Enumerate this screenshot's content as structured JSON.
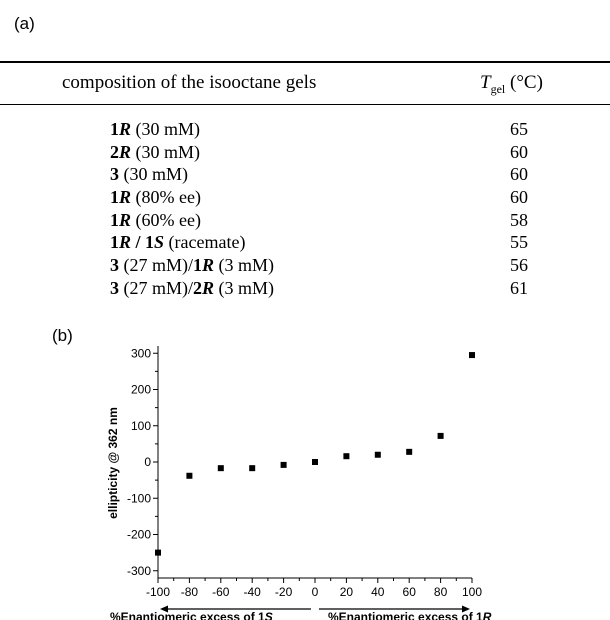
{
  "panel_a": {
    "label": "(a)",
    "header": {
      "composition": "composition of the isooctane gels",
      "tgel_symbol": "T",
      "tgel_sub": "gel",
      "tgel_unit": " (°C)"
    },
    "rows": [
      {
        "parts": [
          {
            "t": "1",
            "b": true
          },
          {
            "t": "R",
            "b": true,
            "i": true
          },
          {
            "t": " (30 mM)"
          }
        ],
        "tgel": "65"
      },
      {
        "parts": [
          {
            "t": "2",
            "b": true
          },
          {
            "t": "R",
            "b": true,
            "i": true
          },
          {
            "t": " (30 mM)"
          }
        ],
        "tgel": "60"
      },
      {
        "parts": [
          {
            "t": "3",
            "b": true
          },
          {
            "t": " (30 mM)"
          }
        ],
        "tgel": "60"
      },
      {
        "parts": [
          {
            "t": "1",
            "b": true
          },
          {
            "t": "R",
            "b": true,
            "i": true
          },
          {
            "t": " (80% ee)"
          }
        ],
        "tgel": "60"
      },
      {
        "parts": [
          {
            "t": "1",
            "b": true
          },
          {
            "t": "R",
            "b": true,
            "i": true
          },
          {
            "t": " (60% ee)"
          }
        ],
        "tgel": "58"
      },
      {
        "parts": [
          {
            "t": "1",
            "b": true
          },
          {
            "t": "R",
            "b": true,
            "i": true
          },
          {
            "t": " / ",
            "b": true
          },
          {
            "t": "1",
            "b": true
          },
          {
            "t": "S",
            "b": true,
            "i": true
          },
          {
            "t": " (racemate)"
          }
        ],
        "tgel": "55"
      },
      {
        "parts": [
          {
            "t": "3",
            "b": true
          },
          {
            "t": " (27 mM)/"
          },
          {
            "t": "1",
            "b": true
          },
          {
            "t": "R",
            "b": true,
            "i": true
          },
          {
            "t": " (3 mM)"
          }
        ],
        "tgel": "56"
      },
      {
        "parts": [
          {
            "t": "3",
            "b": true
          },
          {
            "t": " (27 mM)/"
          },
          {
            "t": "2",
            "b": true
          },
          {
            "t": "R",
            "b": true,
            "i": true
          },
          {
            "t": " (3 mM)"
          }
        ],
        "tgel": "61"
      }
    ]
  },
  "panel_b": {
    "label": "(b)"
  },
  "chart_data": {
    "type": "scatter",
    "ylabel": "ellipticity @ 362 nm",
    "xlabel_left": "%Enantiomeric excess of 1S",
    "xlabel_right": "%Enantiomeric excess of 1R",
    "xlim": [
      -100,
      100
    ],
    "ylim": [
      -320,
      320
    ],
    "xticks": [
      -100,
      -80,
      -60,
      -40,
      -20,
      0,
      20,
      40,
      60,
      80,
      100
    ],
    "yticks": [
      300,
      200,
      100,
      0,
      -100,
      -200,
      -300
    ],
    "grid": false,
    "series": [
      {
        "x": [
          -100,
          -80,
          -60,
          -40,
          -20,
          0,
          20,
          40,
          60,
          80,
          100
        ],
        "y": [
          -250,
          -38,
          -17,
          -17,
          -8,
          0,
          16,
          20,
          28,
          72,
          295
        ],
        "color": "#000000"
      }
    ]
  }
}
